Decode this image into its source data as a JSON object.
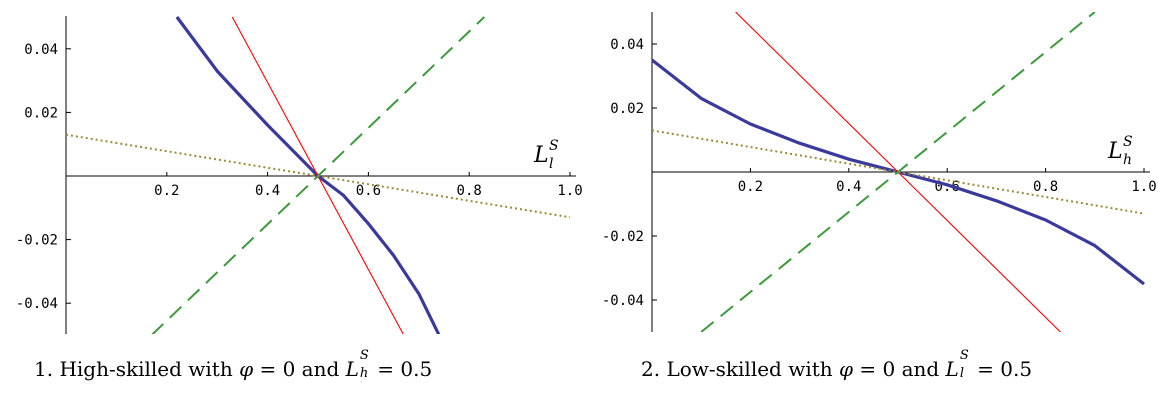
{
  "captions": [
    "1. High-skilled with φ = 0 and Lʰˢ = 0.5",
    "2. Low-skilled with φ = 0 and Lˡˢ = 0.5"
  ],
  "caption_parts": [
    {
      "prefix": "1. High-skilled with ",
      "phi": "φ",
      "mid": " = 0 and ",
      "L": "L",
      "sup": "S",
      "sub": "h",
      "suffix": " = 0.5"
    },
    {
      "prefix": "2. Low-skilled with ",
      "phi": "φ",
      "mid": " = 0 and ",
      "L": "L",
      "sup": "S",
      "sub": "l",
      "suffix": " = 0.5"
    }
  ],
  "colors": {
    "blue": "#3a3a9c",
    "red": "#ff0000",
    "green": "#3c9a3c",
    "olive": "#9a8a3a"
  },
  "chart_data": [
    {
      "type": "line",
      "axis_label": {
        "base": "L",
        "sup": "S",
        "sub": "l"
      },
      "xlim": [
        0,
        1.0
      ],
      "ylim": [
        -0.05,
        0.05
      ],
      "x_ticks": [
        "0.2",
        "0.4",
        "0.6",
        "0.8",
        "1.0"
      ],
      "x_tick_values": [
        0.2,
        0.4,
        0.6,
        0.8,
        1.0
      ],
      "y_ticks": [
        "0.04",
        "0.02",
        "-0.02",
        "-0.04"
      ],
      "y_tick_values": [
        0.04,
        0.02,
        -0.02,
        -0.04
      ],
      "series": [
        {
          "style": "thick-solid",
          "color": "#3a3a9c",
          "x": [
            0.22,
            0.3,
            0.4,
            0.5,
            0.55,
            0.6,
            0.65,
            0.7,
            0.74
          ],
          "y": [
            0.05,
            0.033,
            0.016,
            0.0,
            -0.006,
            -0.015,
            -0.025,
            -0.037,
            -0.05
          ]
        },
        {
          "style": "thin-solid",
          "color": "#ff0000",
          "x": [
            0.33,
            0.5,
            0.67
          ],
          "y": [
            0.05,
            0.0,
            -0.05
          ]
        },
        {
          "style": "dashed",
          "color": "#3c9a3c",
          "x": [
            0.17,
            0.5,
            0.83
          ],
          "y": [
            -0.05,
            0.0,
            0.05
          ]
        },
        {
          "style": "dotted",
          "color": "#9a8a3a",
          "x": [
            0.0,
            0.5,
            1.0
          ],
          "y": [
            0.013,
            0.0,
            -0.013
          ]
        }
      ]
    },
    {
      "type": "line",
      "axis_label": {
        "base": "L",
        "sup": "S",
        "sub": "h"
      },
      "xlim": [
        0,
        1.0
      ],
      "ylim": [
        -0.05,
        0.05
      ],
      "x_ticks": [
        "0.2",
        "0.4",
        "0.6",
        "0.8",
        "1.0"
      ],
      "x_tick_values": [
        0.2,
        0.4,
        0.6,
        0.8,
        1.0
      ],
      "y_ticks": [
        "0.04",
        "0.02",
        "-0.02",
        "-0.04"
      ],
      "y_tick_values": [
        0.04,
        0.02,
        -0.02,
        -0.04
      ],
      "series": [
        {
          "style": "thick-solid",
          "color": "#3a3a9c",
          "x": [
            0.0,
            0.1,
            0.2,
            0.3,
            0.4,
            0.5,
            0.6,
            0.7,
            0.8,
            0.9,
            1.0
          ],
          "y": [
            0.035,
            0.023,
            0.015,
            0.009,
            0.004,
            0.0,
            -0.004,
            -0.009,
            -0.015,
            -0.023,
            -0.035
          ]
        },
        {
          "style": "thin-solid",
          "color": "#ff0000",
          "x": [
            0.17,
            0.5,
            0.83
          ],
          "y": [
            0.05,
            0.0,
            -0.05
          ]
        },
        {
          "style": "dashed",
          "color": "#3c9a3c",
          "x": [
            0.1,
            0.5,
            0.9
          ],
          "y": [
            -0.05,
            0.0,
            0.05
          ]
        },
        {
          "style": "dotted",
          "color": "#9a8a3a",
          "x": [
            0.0,
            0.5,
            1.0
          ],
          "y": [
            0.013,
            0.0,
            -0.013
          ]
        }
      ]
    }
  ]
}
